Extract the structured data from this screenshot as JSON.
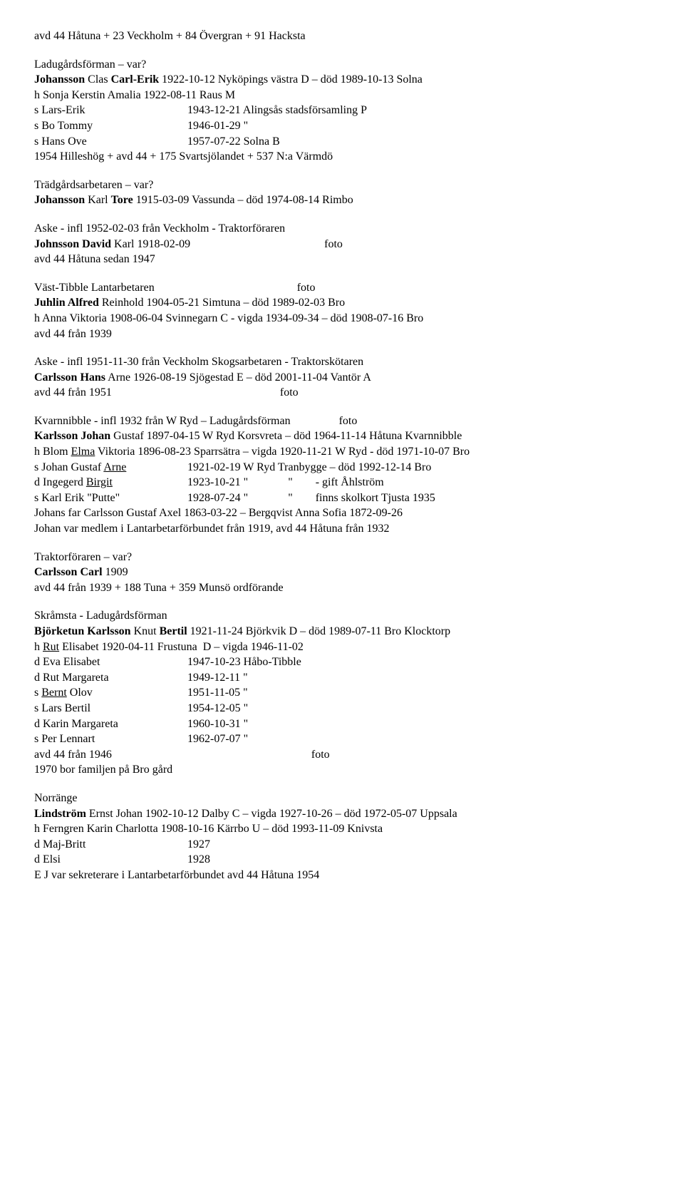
{
  "font_family": "Times New Roman",
  "font_size_pt": 12,
  "text_color": "#000000",
  "background_color": "#ffffff",
  "doc": {
    "sec1": {
      "l1": "avd 44 Håtuna + 23 Veckholm + 84 Övergran + 91 Hacksta"
    },
    "sec2": {
      "l1": "Ladugårdsförman – var?",
      "l2a": "Johansson",
      "l2b": " Clas ",
      "l2c": "Carl-Erik",
      "l2d": " 1922-10-12 Nyköpings västra D – död 1989-10-13 Solna",
      "l3": "h Sonja Kerstin Amalia 1922-08-11 Raus M",
      "r1c1": "s Lars-Erik",
      "r1c2": "1943-12-21 Alingsås stadsförsamling P",
      "r2c1": "s Bo Tommy",
      "r2c2": "1946-01-29 \"",
      "r3c1": "s Hans Ove",
      "r3c2": "1957-07-22 Solna B",
      "l4": "1954 Hilleshög + avd 44 + 175 Svartsjölandet + 537 N:a Värmdö"
    },
    "sec3": {
      "l1": "Trädgårdsarbetaren – var?",
      "l2a": "Johansson",
      "l2b": " Karl ",
      "l2c": "Tore",
      "l2d": " 1915-03-09 Vassunda – död 1974-08-14 Rimbo"
    },
    "sec4": {
      "l1": "Aske - infl 1952-02-03 från Veckholm - Traktorföraren",
      "l2a": "Johnsson David",
      "l2b": " Karl 1918-02-09                                               foto",
      "l3": "avd 44 Håtuna sedan 1947"
    },
    "sec5": {
      "l1": "Väst-Tibble Lantarbetaren                                                  foto",
      "l2a": "Juhlin Alfred",
      "l2b": " Reinhold 1904-05-21 Simtuna – död 1989-02-03 Bro",
      "l3": "h Anna Viktoria 1908-06-04 Svinnegarn C - vigda 1934-09-34 – död 1908-07-16 Bro",
      "l4": "avd 44 från 1939"
    },
    "sec6": {
      "l1": "Aske - infl 1951-11-30 från Veckholm Skogsarbetaren - Traktorskötaren",
      "l2a": "Carlsson Hans",
      "l2b": " Arne 1926-08-19 Sjögestad E – död 2001-11-04 Vantör A",
      "l3": "avd 44 från 1951                                                           foto"
    },
    "sec7": {
      "l1": "Kvarnnibble - infl 1932 från W Ryd – Ladugårdsförman                 foto",
      "l2a": "Karlsson Johan",
      "l2b": " Gustaf 1897-04-15 W Ryd Korsvreta – död 1964-11-14 Håtuna Kvarnnibble",
      "l3": "h Blom Elma Viktoria 1896-08-23 Sparrsätra – vigda 1920-11-21 W Ryd - död 1971-10-07 Bro",
      "r1c1": "s Johan Gustaf  Arne",
      "r1c2": "1921-02-19 W Ryd Tranbygge – död 1992-12-14 Bro",
      "r2c1": "d Ingegerd Birgit",
      "r2c2": "1923-10-21 \"              \"        - gift Åhlström",
      "r3c1": "s Karl Erik \"Putte\"",
      "r3c2": "1928-07-24 \"              \"        finns skolkort Tjusta 1935",
      "l4": "Johans far Carlsson Gustaf Axel 1863-03-22 – Bergqvist Anna Sofia 1872-09-26",
      "l5": "Johan var medlem i Lantarbetarförbundet från 1919, avd 44 Håtuna från 1932"
    },
    "sec8": {
      "l1": "Traktorföraren – var?",
      "l2a": "Carlsson Carl",
      "l2b": " 1909",
      "l3": "avd 44 från 1939 + 188 Tuna + 359 Munsö ordförande"
    },
    "sec9": {
      "l1": "Skråmsta - Ladugårdsförman",
      "l2a": "Björketun Karlsson",
      "l2b": " Knut ",
      "l2c": "Bertil",
      "l2d": " 1921-11-24 Björkvik D – död 1989-07-11 Bro Klocktorp",
      "l3": "h Rut Elisabet 1920-04-11 Frustuna  D – vigda 1946-11-02",
      "r1c1": "d Eva Elisabet",
      "r1c2": "1947-10-23 Håbo-Tibble",
      "r2c1": "d Rut Margareta",
      "r2c2": "1949-12-11 \"",
      "r3c1": "s Bernt Olov",
      "r3c2": "1951-11-05 \"",
      "r4c1": "s Lars Bertil",
      "r4c2": "1954-12-05 \"",
      "r5c1": "d Karin Margareta",
      "r5c2": "1960-10-31 \"",
      "r6c1": "s Per Lennart",
      "r6c2": "1962-07-07 \"",
      "l4": "avd 44 från 1946                                                                      foto",
      "l5": "1970 bor familjen på Bro gård"
    },
    "sec10": {
      "l1": "Norränge",
      "l2a": "Lindström",
      "l2b": " Ernst Johan 1902-10-12 Dalby C – vigda 1927-10-26 – död 1972-05-07 Uppsala",
      "l3": "h Ferngren Karin Charlotta 1908-10-16 Kärrbo U – död 1993-11-09 Knivsta",
      "r1c1": "d Maj-Britt",
      "r1c2": "1927",
      "r2c1": "d Elsi",
      "r2c2": "1928",
      "l4": "E J var sekreterare i Lantarbetarförbundet avd 44 Håtuna 1954"
    }
  }
}
